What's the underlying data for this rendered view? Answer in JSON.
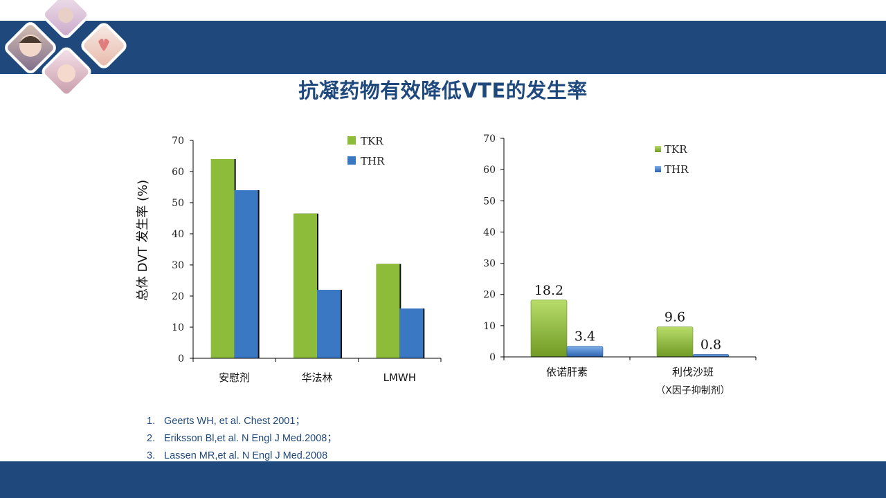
{
  "title": "抗凝药物有效降低VTE的发生率",
  "colors": {
    "band": "#1f497d",
    "tkr": "#8dbb3a",
    "thr": "#3a78c4",
    "title": "#1f497d"
  },
  "references": [
    {
      "num": "1.",
      "text": "Geerts WH, et al. Chest 2001；"
    },
    {
      "num": "2.",
      "text": "Eriksson Bl,et al. N Engl J Med.2008；"
    },
    {
      "num": "3.",
      "text": "Lassen MR,et al. N Engl J Med.2008"
    }
  ],
  "chart_data": [
    {
      "type": "bar",
      "title": "",
      "ylabel": "总体 DVT 发生率 (%)",
      "xlabel": "",
      "ylim": [
        0,
        70
      ],
      "yticks": [
        0,
        10,
        20,
        30,
        40,
        50,
        60,
        70
      ],
      "categories": [
        "安慰剂",
        "华法林",
        "LMWH"
      ],
      "series": [
        {
          "name": "TKR",
          "values": [
            64,
            46.5,
            30.3
          ]
        },
        {
          "name": "THR",
          "values": [
            54,
            22,
            16
          ]
        }
      ],
      "legend": "top-right",
      "data_labels": false
    },
    {
      "type": "bar",
      "title": "",
      "ylabel": "",
      "xlabel": "",
      "ylim": [
        0,
        70
      ],
      "yticks": [
        0,
        10,
        20,
        30,
        40,
        50,
        60,
        70
      ],
      "categories": [
        "依诺肝素",
        "利伐沙班"
      ],
      "category_notes": [
        "",
        "（X因子抑制剂）"
      ],
      "series": [
        {
          "name": "TKR",
          "values": [
            18.2,
            9.6
          ]
        },
        {
          "name": "THR",
          "values": [
            3.4,
            0.8
          ]
        }
      ],
      "value_labels": [
        [
          "18.2",
          "9.6"
        ],
        [
          "3.4",
          "0.8"
        ]
      ],
      "legend": "top-right",
      "data_labels": true
    }
  ]
}
